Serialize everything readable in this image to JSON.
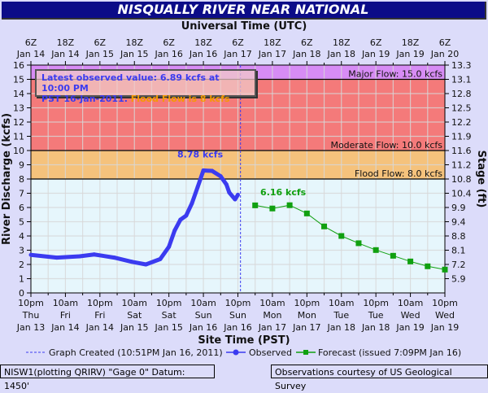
{
  "title": "NISQUALLY RIVER NEAR NATIONAL",
  "info": {
    "line1": "Latest observed value: 6.89 kcfs at 10:00 PM",
    "line2": "PST 16-Jan-2011.",
    "flood": "Flood Flow is 8 kcfs"
  },
  "footer": {
    "left": "NISW1(plotting QRIRV) \"Gage 0\" Datum: 1450'",
    "right": "Observations courtesy of US Geological Survey"
  },
  "colors": {
    "title_bg": "#0c0c88",
    "major": "#d78cf5",
    "moderate": "#f47a7a",
    "flood": "#f5c27c",
    "normal": "#e6f6fc",
    "observed": "#3b3bf0",
    "forecast": "#10a010"
  },
  "chart_data": {
    "type": "line",
    "top_axis_title": "Universal Time (UTC)",
    "top_ticks": [
      [
        "6Z",
        "Jan 14"
      ],
      [
        "18Z",
        "Jan 14"
      ],
      [
        "6Z",
        "Jan 15"
      ],
      [
        "18Z",
        "Jan 15"
      ],
      [
        "6Z",
        "Jan 16"
      ],
      [
        "18Z",
        "Jan 16"
      ],
      [
        "6Z",
        "Jan 17"
      ],
      [
        "18Z",
        "Jan 17"
      ],
      [
        "6Z",
        "Jan 18"
      ],
      [
        "18Z",
        "Jan 18"
      ],
      [
        "6Z",
        "Jan 19"
      ],
      [
        "18Z",
        "Jan 19"
      ],
      [
        "6Z",
        "Jan 20"
      ]
    ],
    "xlabel": "Site Time (PST)",
    "x_ticks": [
      [
        "10pm",
        "Thu",
        "Jan 13"
      ],
      [
        "10am",
        "Fri",
        "Jan 14"
      ],
      [
        "10pm",
        "Fri",
        "Jan 14"
      ],
      [
        "10am",
        "Sat",
        "Jan 15"
      ],
      [
        "10pm",
        "Sat",
        "Jan 15"
      ],
      [
        "10am",
        "Sun",
        "Jan 16"
      ],
      [
        "10pm",
        "Sun",
        "Jan 16"
      ],
      [
        "10am",
        "Mon",
        "Jan 17"
      ],
      [
        "10pm",
        "Mon",
        "Jan 17"
      ],
      [
        "10am",
        "Tue",
        "Jan 18"
      ],
      [
        "10pm",
        "Tue",
        "Jan 18"
      ],
      [
        "10am",
        "Wed",
        "Jan 19"
      ],
      [
        "10pm",
        "Wed",
        "Jan 19"
      ]
    ],
    "x_unit": "hours since 10pm Jan 13 PST",
    "xlim": [
      0,
      144
    ],
    "ylabel": "River Discharge (kcfs)",
    "ylim": [
      0,
      16
    ],
    "y_ticks": [
      0,
      1,
      2,
      3,
      4,
      5,
      6,
      7,
      8,
      9,
      10,
      11,
      12,
      13,
      14,
      15,
      16
    ],
    "y2label": "Stage (ft)",
    "y2_ticks": [
      "13.3",
      "13.1",
      "12.8",
      "12.5",
      "12.2",
      "11.9",
      "11.6",
      "11.2",
      "10.8",
      "10.4",
      "9.9",
      "9.4",
      "8.8",
      "8.1",
      "7.2",
      "5.9"
    ],
    "thresholds": [
      {
        "label": "Major Flow: 15.0 kcfs",
        "value": 15
      },
      {
        "label": "Moderate Flow: 10.0 kcfs",
        "value": 10
      },
      {
        "label": "Flood Flow: 8.0 kcfs",
        "value": 8
      }
    ],
    "graph_created": {
      "x": 72.9,
      "label": "Graph Created (10:51PM Jan 16, 2011)"
    },
    "series": [
      {
        "name": "Observed",
        "legend": "Observed",
        "peak_label": "8.78 kcfs",
        "peak": [
          60,
          8.78
        ],
        "x": [
          0,
          9,
          17,
          22,
          29,
          35,
          40,
          45,
          48,
          50,
          52,
          54,
          56,
          58,
          60,
          63,
          66,
          68,
          69,
          71,
          72
        ],
        "y": [
          2.67,
          2.48,
          2.57,
          2.7,
          2.48,
          2.19,
          2.0,
          2.38,
          3.24,
          4.38,
          5.14,
          5.43,
          6.29,
          7.43,
          8.6,
          8.57,
          8.19,
          7.62,
          7.05,
          6.57,
          6.89
        ]
      },
      {
        "name": "Forecast",
        "legend": "Forecast (issued 7:09PM Jan 16)",
        "peak_label": "6.16 kcfs",
        "peak": [
          90,
          6.16
        ],
        "x": [
          78,
          84,
          90,
          96,
          102,
          108,
          114,
          120,
          126,
          132,
          138,
          144
        ],
        "y": [
          6.15,
          5.93,
          6.16,
          5.58,
          4.67,
          4.0,
          3.49,
          3.01,
          2.61,
          2.21,
          1.87,
          1.64
        ]
      }
    ]
  }
}
